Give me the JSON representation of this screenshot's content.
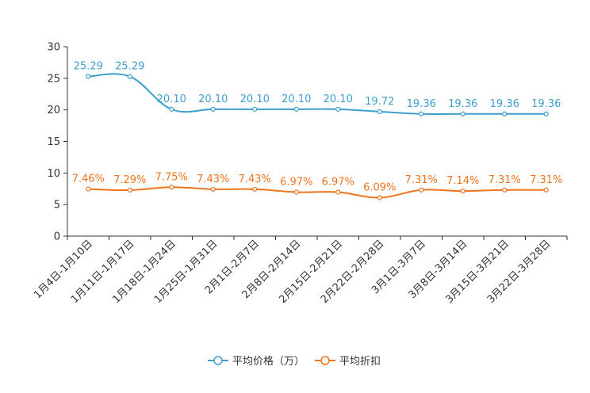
{
  "chart_data": {
    "type": "line",
    "categories": [
      "1月4日-1月10日",
      "1月11日-1月17日",
      "1月18日-1月24日",
      "1月25日-1月31日",
      "2月1日-2月7日",
      "2月8日-2月14日",
      "2月15日-2月21日",
      "2月22日-2月28日",
      "3月1日-3月7日",
      "3月8日-3月14日",
      "3月15日-3月21日",
      "3月22日-3月28日"
    ],
    "ylim": [
      0,
      30
    ],
    "yticks": [
      0,
      5,
      10,
      15,
      20,
      25,
      30
    ],
    "series": [
      {
        "name": "平均价格（万）",
        "color": "#3c9fcd",
        "values": [
          25.29,
          25.29,
          20.1,
          20.1,
          20.1,
          20.1,
          20.1,
          19.72,
          19.36,
          19.36,
          19.36,
          19.36
        ],
        "labels": [
          "25.29",
          "25.29",
          "20.10",
          "20.10",
          "20.10",
          "20.10",
          "20.10",
          "19.72",
          "19.36",
          "19.36",
          "19.36",
          "19.36"
        ]
      },
      {
        "name": "平均折扣",
        "color": "#f0741c",
        "values": [
          7.46,
          7.29,
          7.75,
          7.43,
          7.43,
          6.97,
          6.97,
          6.09,
          7.31,
          7.14,
          7.31,
          7.31
        ],
        "labels": [
          "7.46%",
          "7.29%",
          "7.75%",
          "7.43%",
          "7.43%",
          "6.97%",
          "6.97%",
          "6.09%",
          "7.31%",
          "7.14%",
          "7.31%",
          "7.31%"
        ]
      }
    ],
    "legend_position": "bottom-center"
  }
}
